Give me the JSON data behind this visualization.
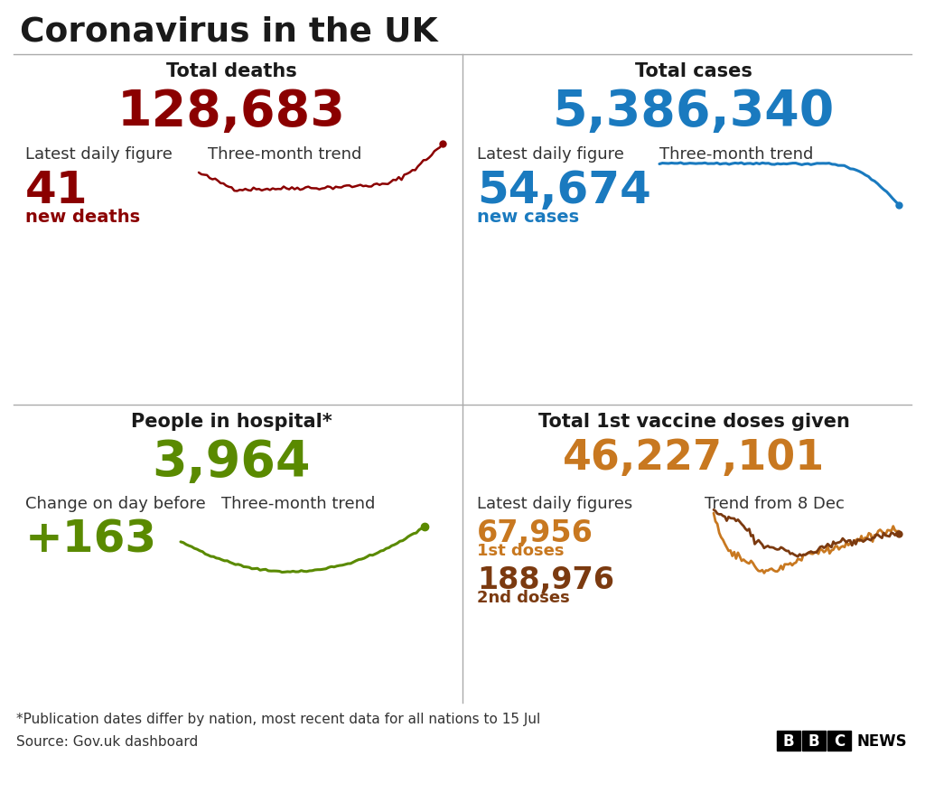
{
  "title": "Coronavirus in the UK",
  "bg_color": "#ffffff",
  "title_color": "#1a1a1a",
  "divider_color": "#aaaaaa",
  "deaths_title": "Total deaths",
  "deaths_total": "128,683",
  "deaths_total_color": "#8b0000",
  "deaths_label1": "Latest daily figure",
  "deaths_label2": "Three-month trend",
  "deaths_daily": "41",
  "deaths_daily_color": "#8b0000",
  "deaths_daily_label": "new deaths",
  "cases_title": "Total cases",
  "cases_total": "5,386,340",
  "cases_total_color": "#1a7abf",
  "cases_label1": "Latest daily figure",
  "cases_label2": "Three-month trend",
  "cases_daily": "54,674",
  "cases_daily_color": "#1a7abf",
  "cases_daily_label": "new cases",
  "hospital_title": "People in hospital*",
  "hospital_total": "3,964",
  "hospital_total_color": "#5a8a00",
  "hospital_label1": "Change on day before",
  "hospital_label2": "Three-month trend",
  "hospital_daily": "+163",
  "hospital_daily_color": "#5a8a00",
  "vaccine_title": "Total 1st vaccine doses given",
  "vaccine_total": "46,227,101",
  "vaccine_total_color": "#c87820",
  "vaccine_label1": "Latest daily figures",
  "vaccine_label2": "Trend from 8 Dec",
  "vaccine_dose1": "67,956",
  "vaccine_dose1_label": "1st doses",
  "vaccine_dose1_color": "#c87820",
  "vaccine_dose2": "188,976",
  "vaccine_dose2_label": "2nd doses",
  "vaccine_dose2_color": "#7b3a10",
  "footnote1": "*Publication dates differ by nation, most recent data for all nations to 15 Jul",
  "footnote2": "Source: Gov.uk dashboard",
  "label_color": "#333333",
  "label_fontsize": 13,
  "footnote_fontsize": 11,
  "title_fontsize": 27,
  "section_title_fontsize": 15,
  "big_number_fontsize": 40,
  "daily_number_fontsize": 36,
  "daily_label_fontsize": 14,
  "vaccine_total_fontsize": 33
}
